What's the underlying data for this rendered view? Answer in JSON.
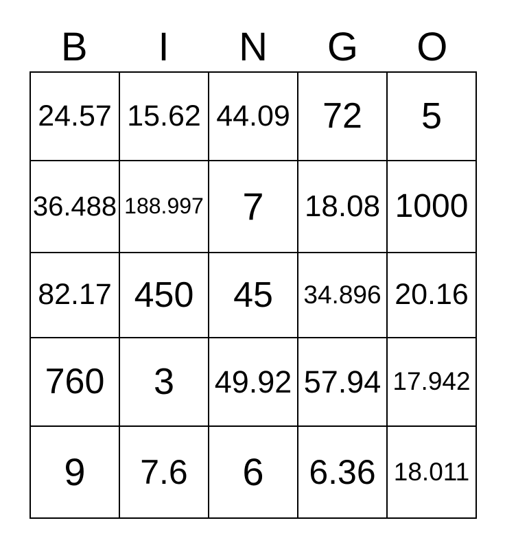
{
  "header": {
    "letters": [
      "B",
      "I",
      "N",
      "G",
      "O"
    ]
  },
  "grid": {
    "rows": [
      [
        "24.57",
        "15.62",
        "44.09",
        "72",
        "5"
      ],
      [
        "36.488",
        "188.997",
        "7",
        "18.08",
        "1000"
      ],
      [
        "82.17",
        "450",
        "45",
        "34.896",
        "20.16"
      ],
      [
        "760",
        "3",
        "49.92",
        "57.94",
        "17.942"
      ],
      [
        "9",
        "7.6",
        "6",
        "6.36",
        "18.011"
      ]
    ]
  },
  "colors": {
    "text": "#000000",
    "background": "#ffffff",
    "grid_border": "#000000"
  }
}
